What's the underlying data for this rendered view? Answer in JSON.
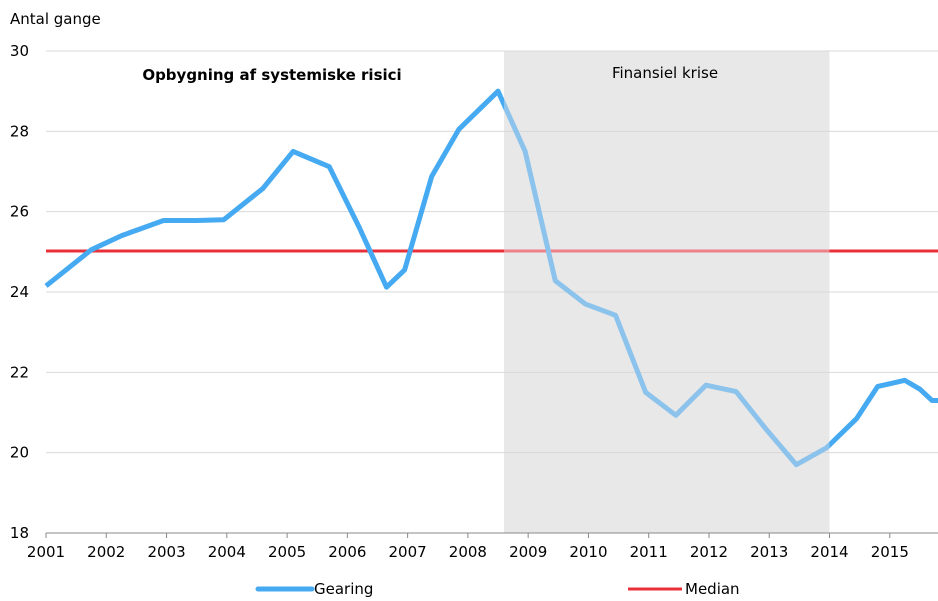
{
  "chart_data": {
    "type": "line",
    "ylabel": "Antal gange",
    "ylim": [
      18,
      30
    ],
    "yticks": [
      18,
      20,
      22,
      24,
      26,
      28,
      30
    ],
    "xlim": [
      2001,
      2015.8
    ],
    "xticks": [
      2001,
      2002,
      2003,
      2004,
      2005,
      2006,
      2007,
      2008,
      2009,
      2010,
      2011,
      2012,
      2013,
      2014,
      2015
    ],
    "grid": "horizontal",
    "legend_position": "bottom",
    "annotations": {
      "left_region": "Opbygning af systemiske risici",
      "shaded_region": "Finansiel krise"
    },
    "shaded_period": [
      2008.6,
      2014
    ],
    "colors": {
      "gearing": "#45aaf2",
      "gearing_crisis": "#8cc3ec",
      "median": "#e8303a",
      "median_crisis": "#ee8088",
      "shade": "#e8e8e8",
      "grid": "#d9d9d9",
      "axis": "#888888"
    },
    "series": [
      {
        "name": "Gearing",
        "x": [
          2001.0,
          2001.75,
          2002.25,
          2002.95,
          2003.5,
          2003.95,
          2004.6,
          2005.1,
          2005.7,
          2006.2,
          2006.65,
          2006.95,
          2007.4,
          2007.85,
          2008.5,
          2008.95,
          2009.45,
          2009.95,
          2010.45,
          2010.95,
          2011.45,
          2011.95,
          2012.45,
          2012.95,
          2013.45,
          2013.95,
          2014.45,
          2014.8,
          2015.25,
          2015.5,
          2015.7,
          2015.8
        ],
        "values": [
          24.15,
          25.05,
          25.4,
          25.78,
          25.78,
          25.8,
          26.58,
          27.5,
          27.12,
          25.6,
          24.12,
          24.55,
          26.88,
          28.05,
          29.0,
          27.5,
          24.28,
          23.7,
          23.42,
          21.5,
          20.93,
          21.68,
          21.52,
          20.58,
          19.7,
          20.12,
          20.85,
          21.65,
          21.8,
          21.58,
          21.3,
          21.3
        ]
      },
      {
        "name": "Median",
        "x": [
          2001,
          2015.8
        ],
        "values": [
          25.02,
          25.02
        ]
      }
    ]
  }
}
